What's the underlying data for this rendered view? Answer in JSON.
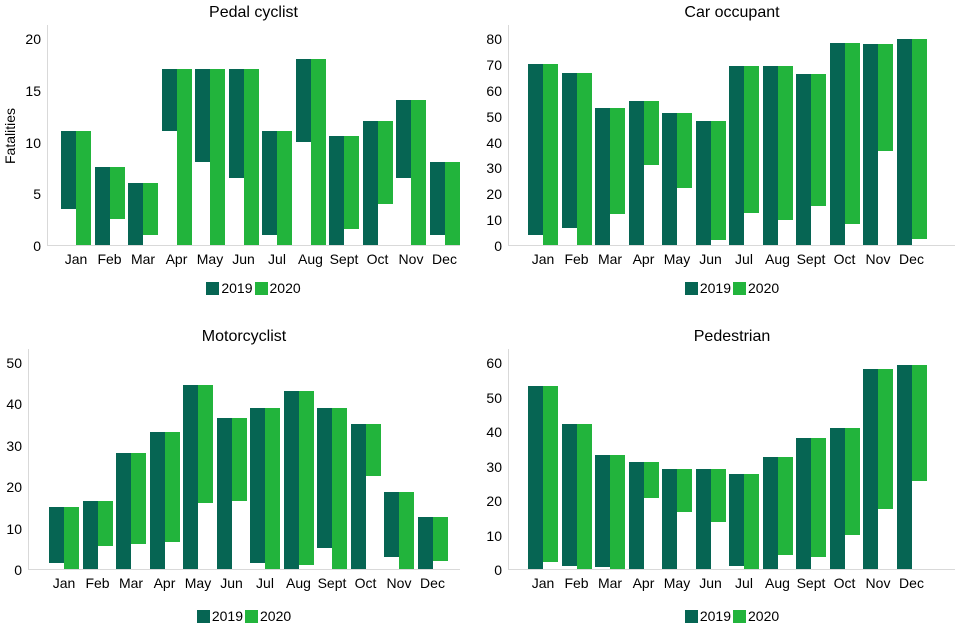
{
  "colors": {
    "series_2019": "#066553",
    "series_2020": "#22B43C",
    "axis_line": "#D9D9D9",
    "text": "#000000"
  },
  "chart_data": [
    {
      "type": "bar",
      "title": "Pedal cyclist",
      "y_axis_label": "Fatalities",
      "xlabel": "",
      "y_max": 20,
      "y_ticks": [
        0,
        5,
        10,
        15,
        20
      ],
      "grid": false,
      "legend_position": "bottom",
      "categories": [
        "Jan",
        "Feb",
        "Mar",
        "Apr",
        "May",
        "Jun",
        "Jul",
        "Aug",
        "Sept",
        "Oct",
        "Nov",
        "Dec"
      ],
      "series": [
        {
          "name": "2019",
          "color": "#066553",
          "values": [
            7.5,
            7.5,
            6,
            6,
            9,
            10.5,
            10,
            8,
            10.5,
            12,
            7.5,
            7
          ]
        },
        {
          "name": "2020",
          "color": "#22B43C",
          "values": [
            11,
            5,
            5,
            17,
            17,
            17,
            11,
            18,
            9,
            8,
            14,
            8
          ]
        }
      ]
    },
    {
      "type": "bar",
      "title": "Car occupant",
      "y_axis_label": "",
      "xlabel": "",
      "y_max": 80,
      "y_ticks": [
        0,
        10,
        20,
        30,
        40,
        50,
        60,
        70,
        80
      ],
      "grid": false,
      "legend_position": "bottom",
      "categories": [
        "Jan",
        "Feb",
        "Mar",
        "Apr",
        "May",
        "Jun",
        "Jul",
        "Aug",
        "Sept",
        "Oct",
        "Nov",
        "Dec"
      ],
      "series": [
        {
          "name": "2019",
          "color": "#066553",
          "values": [
            66,
            60,
            53,
            55.5,
            51,
            48,
            69,
            69,
            66,
            78,
            77.5,
            79.5
          ]
        },
        {
          "name": "2020",
          "color": "#22B43C",
          "values": [
            70,
            66.5,
            41,
            24.5,
            29,
            46,
            56.5,
            59.5,
            51,
            70,
            41,
            77
          ]
        }
      ]
    },
    {
      "type": "bar",
      "title": "Motorcyclist",
      "y_axis_label": "",
      "xlabel": "",
      "y_max": 50,
      "y_ticks": [
        0,
        10,
        20,
        30,
        40,
        50
      ],
      "grid": false,
      "legend_position": "bottom",
      "categories": [
        "Jan",
        "Feb",
        "Mar",
        "Apr",
        "May",
        "Jun",
        "Jul",
        "Aug",
        "Sept",
        "Oct",
        "Nov",
        "Dec"
      ],
      "series": [
        {
          "name": "2019",
          "color": "#066553",
          "values": [
            13.5,
            16.5,
            28,
            33,
            44.5,
            36.5,
            37.5,
            43,
            34,
            35,
            15.5,
            12.5
          ]
        },
        {
          "name": "2020",
          "color": "#22B43C",
          "values": [
            15,
            11,
            22,
            26.5,
            28.5,
            20,
            39,
            42,
            39,
            12.5,
            18.5,
            10.5
          ]
        }
      ]
    },
    {
      "type": "bar",
      "title": "Pedestrian",
      "y_axis_label": "",
      "xlabel": "",
      "y_max": 60,
      "y_ticks": [
        0,
        10,
        20,
        30,
        40,
        50,
        60
      ],
      "grid": false,
      "legend_position": "bottom",
      "categories": [
        "Jan",
        "Feb",
        "Mar",
        "Apr",
        "May",
        "Jun",
        "Jul",
        "Aug",
        "Sept",
        "Oct",
        "Nov",
        "Dec"
      ],
      "series": [
        {
          "name": "2019",
          "color": "#066553",
          "values": [
            53,
            41,
            32.5,
            31,
            29,
            29,
            26.5,
            32.5,
            38,
            41,
            58,
            59
          ]
        },
        {
          "name": "2020",
          "color": "#22B43C",
          "values": [
            51,
            42,
            33,
            10.5,
            12.5,
            15.5,
            27.5,
            28.5,
            34.5,
            31,
            40.5,
            33.5
          ]
        }
      ]
    }
  ]
}
